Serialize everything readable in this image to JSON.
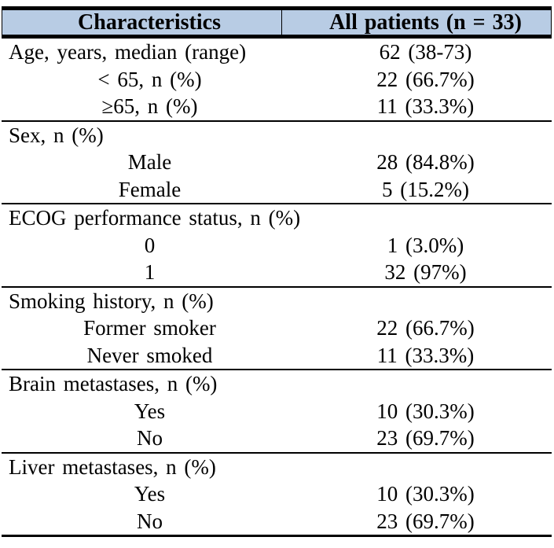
{
  "colors": {
    "header_bg": "#b8cce4",
    "border": "#000000",
    "text": "#000000",
    "page_bg": "#ffffff"
  },
  "table": {
    "header": {
      "col1": "Characteristics",
      "col2": "All patients (n = 33)"
    },
    "sections": [
      {
        "rows": [
          {
            "type": "category",
            "label": "Age, years, median (range)",
            "value": "62 (38-73)"
          },
          {
            "type": "item",
            "label": "< 65, n (%)",
            "value": "22 (66.7%)"
          },
          {
            "type": "item",
            "label": "≥65, n (%)",
            "value": "11 (33.3%)"
          }
        ]
      },
      {
        "rows": [
          {
            "type": "category",
            "label": "Sex, n (%)",
            "value": ""
          },
          {
            "type": "item",
            "label": "Male",
            "value": "28 (84.8%)"
          },
          {
            "type": "item",
            "label": "Female",
            "value": "5 (15.2%)"
          }
        ]
      },
      {
        "rows": [
          {
            "type": "category",
            "label": "ECOG performance status, n (%)",
            "value": ""
          },
          {
            "type": "item",
            "label": "0",
            "value": "1 (3.0%)"
          },
          {
            "type": "item",
            "label": "1",
            "value": "32 (97%)"
          }
        ]
      },
      {
        "rows": [
          {
            "type": "category",
            "label": "Smoking history, n (%)",
            "value": ""
          },
          {
            "type": "item",
            "label": "Former smoker",
            "value": "22 (66.7%)"
          },
          {
            "type": "item",
            "label": "Never smoked",
            "value": "11 (33.3%)"
          }
        ]
      },
      {
        "rows": [
          {
            "type": "category",
            "label": "Brain metastases, n (%)",
            "value": ""
          },
          {
            "type": "item",
            "label": "Yes",
            "value": "10 (30.3%)"
          },
          {
            "type": "item",
            "label": "No",
            "value": "23 (69.7%)"
          }
        ]
      },
      {
        "rows": [
          {
            "type": "category",
            "label": "Liver metastases, n (%)",
            "value": ""
          },
          {
            "type": "item",
            "label": "Yes",
            "value": "10 (30.3%)"
          },
          {
            "type": "item",
            "label": "No",
            "value": "23 (69.7%)"
          }
        ]
      }
    ]
  }
}
